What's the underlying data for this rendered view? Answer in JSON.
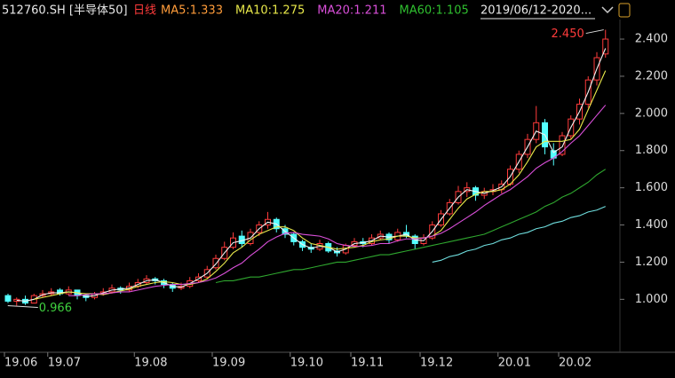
{
  "chart_data": {
    "type": "candlestick",
    "title": "512760.SH [半导体50]",
    "period": "日线",
    "period_color": "#ff3b3b",
    "range_label": "2019/06/12-2020...",
    "max_label": "2.450",
    "min_label": "0.966",
    "up_color": "#ff3b3b",
    "down_color": "#54ffff",
    "categories": [
      "19.06",
      null,
      null,
      null,
      null,
      "19.07",
      null,
      null,
      null,
      null,
      null,
      null,
      null,
      null,
      null,
      "19.08",
      null,
      null,
      null,
      null,
      null,
      null,
      null,
      null,
      "19.09",
      null,
      null,
      null,
      null,
      null,
      null,
      null,
      null,
      "19.10",
      null,
      null,
      null,
      null,
      null,
      null,
      "19.11",
      null,
      null,
      null,
      null,
      null,
      null,
      null,
      "19.12",
      null,
      null,
      null,
      null,
      null,
      null,
      null,
      null,
      "20.01",
      null,
      null,
      null,
      null,
      null,
      null,
      "20.02",
      null,
      null,
      null,
      null,
      null
    ],
    "open": [
      1.02,
      0.99,
      1.0,
      0.98,
      1.02,
      1.03,
      1.05,
      1.03,
      1.05,
      1.02,
      1.01,
      1.03,
      1.04,
      1.06,
      1.05,
      1.07,
      1.09,
      1.11,
      1.1,
      1.08,
      1.06,
      1.07,
      1.1,
      1.12,
      1.17,
      1.22,
      1.28,
      1.34,
      1.3,
      1.36,
      1.4,
      1.43,
      1.38,
      1.35,
      1.31,
      1.28,
      1.27,
      1.3,
      1.26,
      1.25,
      1.29,
      1.31,
      1.3,
      1.33,
      1.35,
      1.32,
      1.36,
      1.34,
      1.3,
      1.33,
      1.4,
      1.46,
      1.52,
      1.58,
      1.6,
      1.56,
      1.58,
      1.59,
      1.62,
      1.7,
      1.78,
      1.86,
      1.95,
      1.8,
      1.78,
      1.88,
      1.97,
      2.05,
      2.18,
      2.32
    ],
    "high": [
      1.03,
      1.01,
      1.02,
      1.03,
      1.05,
      1.06,
      1.06,
      1.07,
      1.05,
      1.03,
      1.04,
      1.06,
      1.08,
      1.07,
      1.09,
      1.11,
      1.13,
      1.12,
      1.11,
      1.09,
      1.09,
      1.12,
      1.14,
      1.18,
      1.24,
      1.31,
      1.36,
      1.37,
      1.38,
      1.42,
      1.47,
      1.44,
      1.4,
      1.36,
      1.32,
      1.3,
      1.32,
      1.31,
      1.28,
      1.3,
      1.33,
      1.33,
      1.35,
      1.37,
      1.36,
      1.38,
      1.4,
      1.35,
      1.35,
      1.42,
      1.48,
      1.54,
      1.61,
      1.63,
      1.61,
      1.6,
      1.62,
      1.64,
      1.72,
      1.8,
      1.89,
      2.04,
      1.97,
      1.84,
      1.9,
      1.99,
      2.08,
      2.2,
      2.33,
      2.45
    ],
    "low": [
      0.98,
      0.966,
      0.97,
      0.98,
      1.01,
      1.02,
      1.02,
      1.02,
      1.0,
      0.99,
      1.0,
      1.02,
      1.03,
      1.03,
      1.04,
      1.06,
      1.08,
      1.08,
      1.06,
      1.04,
      1.05,
      1.06,
      1.09,
      1.11,
      1.16,
      1.21,
      1.27,
      1.28,
      1.29,
      1.34,
      1.38,
      1.36,
      1.33,
      1.29,
      1.26,
      1.25,
      1.26,
      1.25,
      1.23,
      1.24,
      1.28,
      1.28,
      1.29,
      1.32,
      1.3,
      1.31,
      1.33,
      1.27,
      1.29,
      1.32,
      1.39,
      1.45,
      1.51,
      1.55,
      1.53,
      1.54,
      1.56,
      1.57,
      1.61,
      1.68,
      1.76,
      1.84,
      1.78,
      1.72,
      1.77,
      1.86,
      1.94,
      2.03,
      2.15,
      2.3
    ],
    "close": [
      0.99,
      1.0,
      0.98,
      1.02,
      1.03,
      1.04,
      1.03,
      1.05,
      1.02,
      1.01,
      1.03,
      1.04,
      1.06,
      1.05,
      1.07,
      1.09,
      1.11,
      1.1,
      1.08,
      1.06,
      1.07,
      1.1,
      1.12,
      1.16,
      1.22,
      1.28,
      1.33,
      1.3,
      1.36,
      1.4,
      1.43,
      1.38,
      1.35,
      1.31,
      1.28,
      1.27,
      1.3,
      1.26,
      1.25,
      1.29,
      1.31,
      1.3,
      1.33,
      1.35,
      1.32,
      1.36,
      1.34,
      1.3,
      1.33,
      1.4,
      1.46,
      1.52,
      1.58,
      1.6,
      1.56,
      1.58,
      1.59,
      1.62,
      1.7,
      1.78,
      1.86,
      1.95,
      1.82,
      1.76,
      1.88,
      1.97,
      2.05,
      2.18,
      2.3,
      2.4
    ],
    "series": [
      {
        "name": "MA5:1.333",
        "color": "#f2f2f2",
        "label_color": "#ff9c3a",
        "values": [
          null,
          0.995,
          0.99,
          1.0,
          1.025,
          1.035,
          1.035,
          1.04,
          1.035,
          1.015,
          1.02,
          1.035,
          1.05,
          1.055,
          1.06,
          1.08,
          1.1,
          1.105,
          1.09,
          1.07,
          1.065,
          1.085,
          1.11,
          1.14,
          1.19,
          1.25,
          1.305,
          1.315,
          1.33,
          1.38,
          1.415,
          1.405,
          1.365,
          1.33,
          1.295,
          1.275,
          1.285,
          1.28,
          1.255,
          1.27,
          1.3,
          1.305,
          1.315,
          1.34,
          1.335,
          1.34,
          1.35,
          1.32,
          1.315,
          1.365,
          1.43,
          1.49,
          1.55,
          1.59,
          1.58,
          1.57,
          1.585,
          1.605,
          1.66,
          1.74,
          1.82,
          1.905,
          1.885,
          1.79,
          1.82,
          1.925,
          2.01,
          2.115,
          2.24,
          2.35
        ]
      },
      {
        "name": "MA10:1.275",
        "color": "#e8e84a",
        "label_color": "#e8e84a",
        "values": [
          null,
          null,
          null,
          1.0,
          1.01,
          1.02,
          1.03,
          1.04,
          1.035,
          1.03,
          1.03,
          1.025,
          1.035,
          1.045,
          1.055,
          1.07,
          1.08,
          1.09,
          1.095,
          1.09,
          1.08,
          1.08,
          1.09,
          1.11,
          1.15,
          1.195,
          1.25,
          1.28,
          1.32,
          1.35,
          1.37,
          1.39,
          1.39,
          1.37,
          1.33,
          1.3,
          1.29,
          1.28,
          1.27,
          1.275,
          1.28,
          1.29,
          1.31,
          1.32,
          1.325,
          1.34,
          1.34,
          1.33,
          1.33,
          1.34,
          1.37,
          1.43,
          1.49,
          1.54,
          1.565,
          1.58,
          1.58,
          1.59,
          1.62,
          1.67,
          1.74,
          1.82,
          1.85,
          1.85,
          1.85,
          1.86,
          1.915,
          2.02,
          2.125,
          2.23
        ]
      },
      {
        "name": "MA20:1.211",
        "color": "#d94fd9",
        "label_color": "#d94fd9",
        "values": [
          null,
          null,
          null,
          null,
          null,
          null,
          null,
          1.02,
          1.02,
          1.025,
          1.03,
          1.03,
          1.035,
          1.04,
          1.04,
          1.05,
          1.06,
          1.07,
          1.075,
          1.08,
          1.08,
          1.085,
          1.09,
          1.1,
          1.115,
          1.14,
          1.17,
          1.195,
          1.235,
          1.27,
          1.31,
          1.335,
          1.355,
          1.36,
          1.35,
          1.345,
          1.34,
          1.325,
          1.3,
          1.29,
          1.285,
          1.285,
          1.29,
          1.3,
          1.3,
          1.315,
          1.325,
          1.325,
          1.33,
          1.34,
          1.355,
          1.38,
          1.41,
          1.44,
          1.47,
          1.505,
          1.535,
          1.565,
          1.59,
          1.625,
          1.66,
          1.705,
          1.735,
          1.76,
          1.795,
          1.84,
          1.88,
          1.935,
          1.99,
          2.045
        ]
      },
      {
        "name": "MA60:1.105",
        "color": "#2fa82f",
        "label_color": "#2fbf2f",
        "values": [
          null,
          null,
          null,
          null,
          null,
          null,
          null,
          null,
          null,
          null,
          null,
          null,
          null,
          null,
          null,
          null,
          null,
          null,
          null,
          null,
          null,
          null,
          null,
          null,
          1.09,
          1.1,
          1.1,
          1.11,
          1.12,
          1.12,
          1.13,
          1.14,
          1.15,
          1.16,
          1.16,
          1.17,
          1.18,
          1.19,
          1.2,
          1.2,
          1.21,
          1.22,
          1.23,
          1.24,
          1.24,
          1.25,
          1.26,
          1.27,
          1.28,
          1.29,
          1.3,
          1.31,
          1.32,
          1.33,
          1.34,
          1.35,
          1.37,
          1.39,
          1.41,
          1.43,
          1.45,
          1.47,
          1.5,
          1.52,
          1.55,
          1.57,
          1.6,
          1.63,
          1.67,
          1.7
        ]
      },
      {
        "color": "#6fdede",
        "values": [
          null,
          null,
          null,
          null,
          null,
          null,
          null,
          null,
          null,
          null,
          null,
          null,
          null,
          null,
          null,
          null,
          null,
          null,
          null,
          null,
          null,
          null,
          null,
          null,
          null,
          null,
          null,
          null,
          null,
          null,
          null,
          null,
          null,
          null,
          null,
          null,
          null,
          null,
          null,
          null,
          null,
          null,
          null,
          null,
          null,
          null,
          null,
          null,
          null,
          1.2,
          1.21,
          1.23,
          1.24,
          1.26,
          1.27,
          1.29,
          1.3,
          1.32,
          1.33,
          1.35,
          1.36,
          1.38,
          1.39,
          1.41,
          1.42,
          1.44,
          1.45,
          1.47,
          1.48,
          1.5
        ]
      }
    ],
    "ylim": [
      0.72,
      2.51
    ],
    "yticks": [
      {
        "value": 1,
        "label": "1.000"
      },
      {
        "value": 1.2,
        "label": "1.200"
      },
      {
        "value": 1.4,
        "label": "1.400"
      },
      {
        "value": 1.6,
        "label": "1.600"
      },
      {
        "value": 1.8,
        "label": "1.800"
      },
      {
        "value": 2,
        "label": "2.000"
      },
      {
        "value": 2.2,
        "label": "2.200"
      },
      {
        "value": 2.4,
        "label": "2.400"
      }
    ]
  }
}
